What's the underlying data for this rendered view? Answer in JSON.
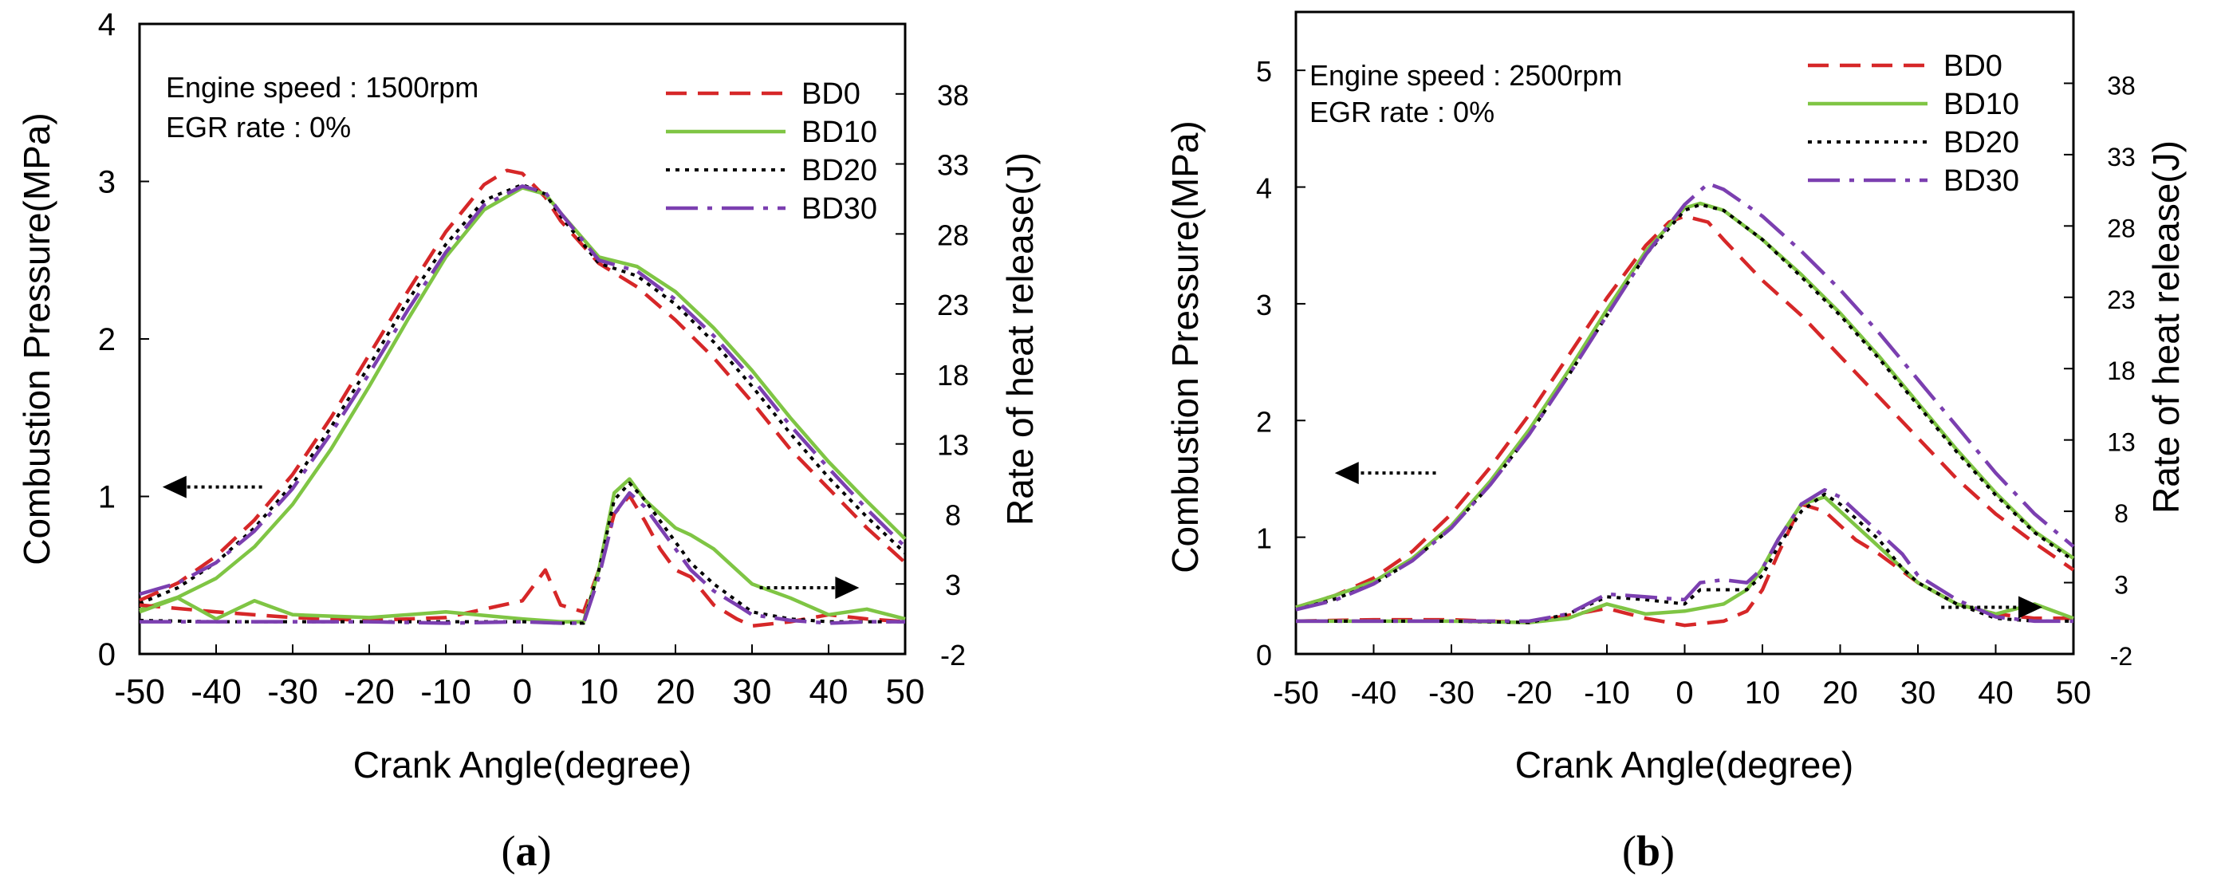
{
  "chart_data": [
    {
      "panel": "(a)",
      "caption_paren_open": "(",
      "caption_letter": "a",
      "caption_paren_close": ")",
      "type": "line",
      "annotations": [
        "Engine speed : 1500rpm",
        "EGR rate : 0%"
      ],
      "xlabel": "Crank Angle(degree)",
      "ylabel_left": "Combustion Pressure(MPa)",
      "ylabel_right": "Rate of heat release(J)",
      "xlim": [
        -50,
        50
      ],
      "ylim_left": [
        0,
        4
      ],
      "ylim_right": [
        -2,
        43
      ],
      "x_ticks": [
        "-50",
        "-40",
        "-30",
        "-20",
        "-10",
        "0",
        "10",
        "20",
        "30",
        "40",
        "50"
      ],
      "y_left_ticks": [
        "0",
        "1",
        "2",
        "3",
        "4"
      ],
      "y_right_ticks": [
        "-2",
        "3",
        "8",
        "13",
        "18",
        "23",
        "28",
        "33",
        "38"
      ],
      "legend": [
        "BD0",
        "BD10",
        "BD20",
        "BD30"
      ],
      "series_colors": [
        "#d62728",
        "#7fc544",
        "#000000",
        "#7b3fb0"
      ],
      "pressure_series": [
        {
          "name": "BD0",
          "x": [
            -50,
            -45,
            -40,
            -35,
            -30,
            -25,
            -20,
            -15,
            -10,
            -5,
            -2,
            0,
            3,
            5,
            10,
            15,
            20,
            25,
            30,
            35,
            40,
            45,
            50
          ],
          "y": [
            0.34,
            0.45,
            0.62,
            0.85,
            1.14,
            1.5,
            1.9,
            2.3,
            2.68,
            2.98,
            3.07,
            3.05,
            2.9,
            2.75,
            2.48,
            2.33,
            2.12,
            1.88,
            1.6,
            1.3,
            1.05,
            0.8,
            0.58
          ]
        },
        {
          "name": "BD10",
          "x": [
            -50,
            -45,
            -40,
            -35,
            -30,
            -25,
            -20,
            -15,
            -10,
            -5,
            0,
            3,
            5,
            10,
            15,
            20,
            25,
            30,
            35,
            40,
            45,
            50
          ],
          "y": [
            0.28,
            0.36,
            0.48,
            0.68,
            0.95,
            1.3,
            1.7,
            2.12,
            2.52,
            2.82,
            2.96,
            2.92,
            2.8,
            2.52,
            2.46,
            2.3,
            2.07,
            1.8,
            1.5,
            1.22,
            0.97,
            0.73
          ]
        },
        {
          "name": "BD20",
          "x": [
            -50,
            -45,
            -40,
            -35,
            -30,
            -25,
            -20,
            -15,
            -10,
            -5,
            0,
            3,
            5,
            10,
            15,
            20,
            25,
            30,
            35,
            40,
            45,
            50
          ],
          "y": [
            0.32,
            0.42,
            0.58,
            0.8,
            1.08,
            1.44,
            1.83,
            2.24,
            2.6,
            2.88,
            2.98,
            2.92,
            2.78,
            2.48,
            2.4,
            2.22,
            1.98,
            1.7,
            1.4,
            1.12,
            0.87,
            0.64
          ]
        },
        {
          "name": "BD30",
          "x": [
            -50,
            -45,
            -40,
            -35,
            -30,
            -25,
            -20,
            -15,
            -10,
            -5,
            0,
            3,
            5,
            10,
            15,
            20,
            25,
            30,
            35,
            40,
            45,
            50
          ],
          "y": [
            0.38,
            0.45,
            0.58,
            0.78,
            1.05,
            1.4,
            1.78,
            2.18,
            2.55,
            2.85,
            2.97,
            2.93,
            2.8,
            2.5,
            2.43,
            2.25,
            2.02,
            1.75,
            1.45,
            1.18,
            0.92,
            0.68
          ]
        }
      ],
      "heat_release_series": [
        {
          "name": "BD0",
          "x": [
            -50,
            -40,
            -30,
            -20,
            -10,
            -5,
            0,
            3,
            5,
            8,
            10,
            12,
            14,
            16,
            18,
            20,
            22,
            25,
            28,
            30,
            35,
            40,
            45,
            50
          ],
          "y": [
            1.5,
            1.0,
            0.6,
            0.4,
            0.6,
            1.2,
            1.8,
            4.0,
            1.5,
            1.0,
            4.0,
            8.0,
            9.3,
            7.5,
            5.5,
            4.0,
            3.5,
            1.5,
            0.5,
            0.0,
            0.3,
            0.8,
            0.5,
            0.3
          ]
        },
        {
          "name": "BD10",
          "x": [
            -50,
            -45,
            -40,
            -35,
            -30,
            -20,
            -10,
            0,
            5,
            8,
            10,
            12,
            14,
            16,
            18,
            20,
            22,
            25,
            28,
            30,
            35,
            40,
            45,
            50
          ],
          "y": [
            1.0,
            2.0,
            0.5,
            1.8,
            0.8,
            0.6,
            1.0,
            0.5,
            0.3,
            0.3,
            4.0,
            9.5,
            10.5,
            9.0,
            8.0,
            7.0,
            6.5,
            5.5,
            4.0,
            3.0,
            2.0,
            0.8,
            1.2,
            0.5
          ]
        },
        {
          "name": "BD20",
          "x": [
            -50,
            -40,
            -30,
            -20,
            -10,
            0,
            5,
            8,
            10,
            12,
            14,
            16,
            18,
            20,
            22,
            25,
            28,
            30,
            35,
            40,
            45,
            50
          ],
          "y": [
            0.4,
            0.3,
            0.3,
            0.3,
            0.3,
            0.3,
            0.2,
            0.2,
            4.0,
            9.0,
            10.2,
            9.0,
            7.5,
            6.0,
            4.5,
            3.0,
            1.8,
            1.0,
            0.5,
            0.3,
            0.3,
            0.3
          ]
        },
        {
          "name": "BD30",
          "x": [
            -50,
            -40,
            -30,
            -20,
            -10,
            0,
            5,
            8,
            10,
            12,
            14,
            16,
            18,
            20,
            22,
            25,
            28,
            30,
            35,
            40,
            45,
            50
          ],
          "y": [
            0.3,
            0.3,
            0.3,
            0.3,
            0.2,
            0.3,
            0.2,
            0.2,
            3.5,
            8.0,
            9.5,
            8.5,
            7.0,
            5.5,
            4.0,
            2.5,
            1.5,
            0.8,
            0.4,
            0.2,
            0.3,
            0.3
          ]
        }
      ],
      "arrows": [
        {
          "direction": "left",
          "tail": [
            -34,
            1.06
          ],
          "head": [
            -47,
            1.06
          ]
        },
        {
          "direction": "right",
          "tail": [
            31,
            0.42
          ],
          "head": [
            44,
            0.42
          ]
        }
      ]
    },
    {
      "panel": "(b)",
      "caption_paren_open": "(",
      "caption_letter": "b",
      "caption_paren_close": ")",
      "type": "line",
      "annotations": [
        "Engine speed : 2500rpm",
        "EGR rate : 0%"
      ],
      "xlabel": "Crank Angle(degree)",
      "ylabel_left": "Combustion Pressure(MPa)",
      "ylabel_right": "Rate of heat release(J)",
      "xlim": [
        -50,
        50
      ],
      "ylim_left": [
        0,
        5.5
      ],
      "ylim_right": [
        -2,
        43
      ],
      "x_ticks": [
        "-50",
        "-40",
        "-30",
        "-20",
        "-10",
        "0",
        "10",
        "20",
        "30",
        "40",
        "50"
      ],
      "y_left_ticks": [
        "0",
        "1",
        "2",
        "3",
        "4",
        "5"
      ],
      "y_right_ticks": [
        "-2",
        "3",
        "8",
        "13",
        "18",
        "23",
        "28",
        "33",
        "38"
      ],
      "legend": [
        "BD0",
        "BD10",
        "BD20",
        "BD30"
      ],
      "series_colors": [
        "#d62728",
        "#7fc544",
        "#000000",
        "#7b3fb0"
      ],
      "pressure_series": [
        {
          "name": "BD0",
          "x": [
            -50,
            -45,
            -40,
            -35,
            -30,
            -25,
            -20,
            -15,
            -10,
            -5,
            -2,
            0,
            3,
            5,
            10,
            15,
            20,
            25,
            30,
            35,
            40,
            45,
            50
          ],
          "y": [
            0.4,
            0.5,
            0.65,
            0.88,
            1.2,
            1.6,
            2.05,
            2.55,
            3.05,
            3.5,
            3.7,
            3.75,
            3.7,
            3.55,
            3.2,
            2.9,
            2.55,
            2.2,
            1.85,
            1.5,
            1.2,
            0.95,
            0.72
          ]
        },
        {
          "name": "BD10",
          "x": [
            -50,
            -45,
            -40,
            -35,
            -30,
            -25,
            -20,
            -15,
            -10,
            -5,
            0,
            2,
            5,
            10,
            15,
            20,
            25,
            30,
            35,
            40,
            45,
            50
          ],
          "y": [
            0.4,
            0.5,
            0.62,
            0.82,
            1.1,
            1.48,
            1.92,
            2.42,
            2.95,
            3.45,
            3.82,
            3.86,
            3.8,
            3.55,
            3.25,
            2.92,
            2.55,
            2.15,
            1.75,
            1.38,
            1.05,
            0.82
          ]
        },
        {
          "name": "BD20",
          "x": [
            -50,
            -45,
            -40,
            -35,
            -30,
            -25,
            -20,
            -15,
            -10,
            -5,
            0,
            2,
            5,
            10,
            15,
            20,
            25,
            30,
            35,
            40,
            45,
            50
          ],
          "y": [
            0.38,
            0.47,
            0.6,
            0.8,
            1.08,
            1.45,
            1.88,
            2.38,
            2.9,
            3.42,
            3.8,
            3.85,
            3.8,
            3.55,
            3.23,
            2.9,
            2.53,
            2.13,
            1.73,
            1.36,
            1.04,
            0.8
          ]
        },
        {
          "name": "BD30",
          "x": [
            -50,
            -45,
            -40,
            -35,
            -30,
            -25,
            -20,
            -15,
            -10,
            -5,
            0,
            3,
            5,
            10,
            15,
            20,
            25,
            30,
            35,
            40,
            45,
            50
          ],
          "y": [
            0.38,
            0.46,
            0.6,
            0.8,
            1.08,
            1.45,
            1.88,
            2.38,
            2.9,
            3.42,
            3.85,
            4.03,
            3.98,
            3.75,
            3.45,
            3.12,
            2.75,
            2.35,
            1.95,
            1.55,
            1.2,
            0.92
          ]
        }
      ],
      "heat_release_series": [
        {
          "name": "BD0",
          "x": [
            -50,
            -40,
            -30,
            -20,
            -10,
            -5,
            0,
            5,
            8,
            10,
            12,
            15,
            18,
            20,
            22,
            25,
            28,
            30,
            35,
            40,
            45,
            50
          ],
          "y": [
            0.3,
            0.4,
            0.4,
            0.2,
            1.2,
            0.5,
            0.0,
            0.3,
            1.0,
            2.5,
            5.0,
            8.5,
            8.0,
            7.0,
            6.0,
            5.0,
            3.8,
            3.0,
            1.5,
            0.8,
            0.5,
            0.5
          ]
        },
        {
          "name": "BD10",
          "x": [
            -50,
            -40,
            -30,
            -20,
            -15,
            -10,
            -5,
            0,
            5,
            8,
            10,
            12,
            15,
            18,
            20,
            22,
            25,
            28,
            30,
            35,
            40,
            45,
            50
          ],
          "y": [
            0.3,
            0.3,
            0.3,
            0.2,
            0.5,
            1.5,
            0.8,
            1.0,
            1.5,
            2.5,
            4.0,
            6.0,
            8.5,
            9.0,
            8.0,
            7.0,
            5.5,
            4.0,
            3.0,
            1.5,
            0.8,
            1.5,
            0.5
          ]
        },
        {
          "name": "BD20",
          "x": [
            -50,
            -40,
            -30,
            -20,
            -15,
            -10,
            -5,
            0,
            2,
            5,
            8,
            10,
            12,
            15,
            18,
            20,
            22,
            25,
            28,
            30,
            35,
            40,
            45,
            50
          ],
          "y": [
            0.3,
            0.3,
            0.3,
            0.2,
            0.8,
            2.0,
            1.8,
            1.5,
            2.5,
            2.5,
            2.5,
            3.5,
            5.5,
            8.0,
            9.2,
            8.5,
            7.5,
            6.0,
            4.0,
            3.0,
            1.5,
            0.5,
            0.3,
            0.3
          ]
        },
        {
          "name": "BD30",
          "x": [
            -50,
            -40,
            -30,
            -20,
            -15,
            -10,
            -5,
            0,
            2,
            5,
            8,
            10,
            12,
            15,
            18,
            20,
            22,
            25,
            28,
            30,
            35,
            40,
            45,
            50
          ],
          "y": [
            0.3,
            0.3,
            0.3,
            0.3,
            0.8,
            2.2,
            2.0,
            1.8,
            3.0,
            3.2,
            3.0,
            4.0,
            6.0,
            8.5,
            9.5,
            9.0,
            8.0,
            6.5,
            5.0,
            3.5,
            1.8,
            0.6,
            0.3,
            0.3
          ]
        }
      ],
      "arrows": [
        {
          "direction": "left",
          "tail": [
            -32,
            1.55
          ],
          "head": [
            -45,
            1.55
          ]
        },
        {
          "direction": "right",
          "tail": [
            33,
            0.4
          ],
          "head": [
            46,
            0.4
          ]
        }
      ]
    }
  ]
}
